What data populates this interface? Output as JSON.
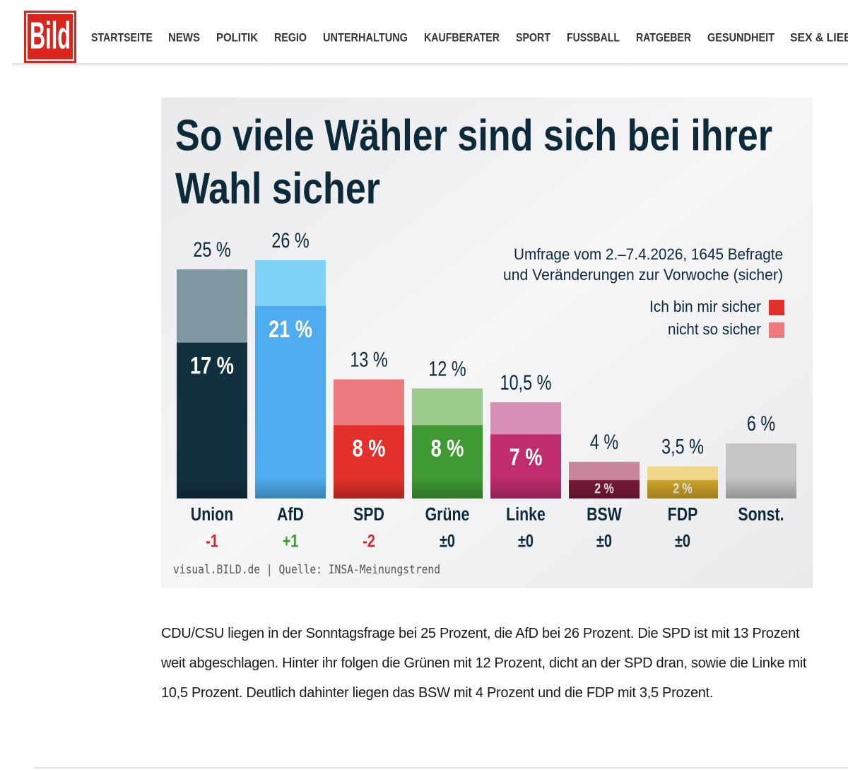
{
  "header": {
    "logo": "Bild",
    "nav": [
      "STARTSEITE",
      "NEWS",
      "POLITIK",
      "REGIO",
      "UNTERHALTUNG",
      "KAUFBERATER",
      "SPORT",
      "FUSSBALL",
      "RATGEBER",
      "GESUNDHEIT",
      "SEX & LIEBE"
    ]
  },
  "chart_data": {
    "type": "bar",
    "title": [
      "So viele Wähler sind sich bei ihrer",
      "Wahl sicher"
    ],
    "subtitle": [
      "Umfrage vom 2.–7.4.2026, 1645 Befragte",
      "und Veränderungen zur Vorwoche (sicher)"
    ],
    "categories": [
      "Union",
      "AfD",
      "SPD",
      "Grüne",
      "Linke",
      "BSW",
      "FDP",
      "Sonst."
    ],
    "totals": {
      "name": "nicht so sicher",
      "color": "#ec7b80",
      "values": [
        25,
        26,
        13,
        12,
        10.5,
        4,
        3.5,
        6
      ],
      "value_labels": [
        "25 %",
        "26 %",
        "13 %",
        "12 %",
        "10,5 %",
        "4 %",
        "3,5 %",
        "6 %"
      ],
      "colors": [
        "#7f98a1",
        "#7fd2f5",
        "#ec7b80",
        "#9cc98c",
        "#d88fb4",
        "#c9859a",
        "#f1d889",
        "#c4c5c7"
      ]
    },
    "series": [
      {
        "name": "Ich bin mir sicher",
        "color": "#e3302a",
        "values": [
          17,
          21,
          8,
          8,
          7,
          2,
          2,
          null
        ],
        "value_labels": [
          "17 %",
          "21 %",
          "8 %",
          "8 %",
          "7 %",
          "2 %",
          "2 %",
          null
        ],
        "colors": [
          "#13303f",
          "#4fadef",
          "#e3302a",
          "#3f9a33",
          "#bf2d6e",
          "#7d1a3a",
          "#d4a82a",
          null
        ]
      }
    ],
    "changes": [
      "-1",
      "+1",
      "-2",
      "±0",
      "±0",
      "±0",
      "±0",
      null
    ],
    "change_colors": [
      "#d7262c",
      "#3f9a33",
      "#d7262c",
      "#0d2a3a",
      "#0d2a3a",
      "#0d2a3a",
      "#0d2a3a",
      null
    ],
    "ylim": [
      0,
      26
    ],
    "source": "visual.BILD.de | Quelle: INSA-Meinungstrend"
  },
  "article": {
    "text": "CDU/CSU liegen in der Sonntagsfrage bei 25 Prozent, die AfD bei 26 Prozent. Die SPD ist mit 13 Prozent weit abgeschlagen. Hinter ihr folgen die Grünen mit 12 Prozent, dicht an der SPD dran, sowie die Linke mit 10,5 Prozent. Deutlich dahinter liegen das BSW mit 4 Prozent und die FDP mit 3,5 Prozent."
  }
}
